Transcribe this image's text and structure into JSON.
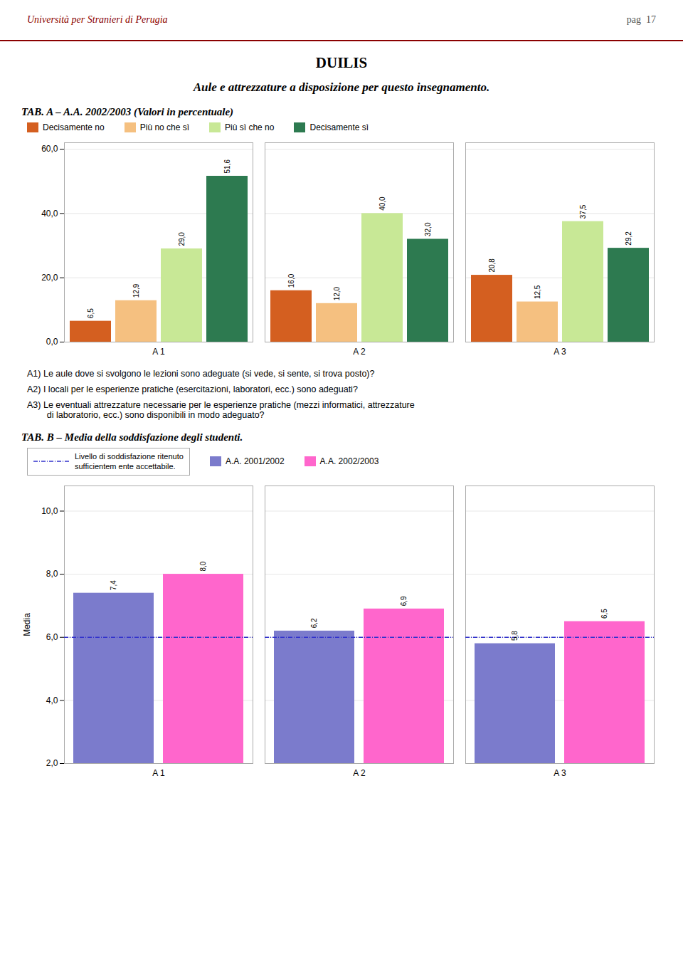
{
  "title": "DUILIS",
  "subtitle": "Aule e attrezzature a disposizione per questo insegnamento.",
  "annotations": [
    "Università per Stranieri di Perugia",
    "pag  17"
  ],
  "chart_data": [
    {
      "type": "bar",
      "title": "TAB. A – A.A. 2002/2003 (Valori in percentuale)",
      "categories": [
        "A 1",
        "A 2",
        "A 3"
      ],
      "series": [
        {
          "name": "Decisamente no",
          "color": "#d45f20",
          "values": [
            6.5,
            16.0,
            20.8
          ],
          "value_labels": [
            "6,5",
            "16,0",
            "20,8"
          ]
        },
        {
          "name": "Più no che sì",
          "color": "#f5c080",
          "values": [
            12.9,
            12.0,
            12.5
          ],
          "value_labels": [
            "12,9",
            "12,0",
            "12,5"
          ]
        },
        {
          "name": "Più sì che no",
          "color": "#c8e896",
          "values": [
            29.0,
            40.0,
            37.5
          ],
          "value_labels": [
            "29,0",
            "40,0",
            "37,5"
          ]
        },
        {
          "name": "Decisamente sì",
          "color": "#2d7a50",
          "values": [
            51.6,
            32.0,
            29.2
          ],
          "value_labels": [
            "51,6",
            "32,0",
            "29,2"
          ]
        }
      ],
      "ylim": [
        0,
        62
      ],
      "yticks": [
        {
          "value": 0,
          "label": "0,0"
        },
        {
          "value": 20,
          "label": "20,0"
        },
        {
          "value": 40,
          "label": "40,0"
        },
        {
          "value": 60,
          "label": "60,0"
        }
      ],
      "grid": true,
      "legend": "top",
      "data_labels": true,
      "annotations": [
        "A1) Le aule dove si svolgono le lezioni sono adeguate (si vede, si sente, si trova posto)?",
        "A2) I locali per le esperienze pratiche (esercitazioni, laboratori, ecc.) sono adeguati?",
        "A3) Le eventuali attrezzature necessarie per le esperienze pratiche (mezzi informatici, attrezzature\n        di laboratorio, ecc.) sono disponibili in modo adeguato?"
      ]
    },
    {
      "type": "bar",
      "title": "TAB. B – Media della soddisfazione degli studenti.",
      "categories": [
        "A 1",
        "A 2",
        "A 3"
      ],
      "series": [
        {
          "name": "A.A. 2001/2002",
          "color": "#7b7bcc",
          "values": [
            7.4,
            6.2,
            5.8
          ],
          "value_labels": [
            "7,4",
            "6,2",
            "5,8"
          ]
        },
        {
          "name": "A.A. 2002/2003",
          "color": "#ff66cc",
          "values": [
            8.0,
            6.9,
            6.5
          ],
          "value_labels": [
            "8,0",
            "6,9",
            "6,5"
          ]
        }
      ],
      "ylabel": "Media",
      "ylim": [
        2,
        10.8
      ],
      "yticks": [
        {
          "value": 2,
          "label": "2,0"
        },
        {
          "value": 4,
          "label": "4,0"
        },
        {
          "value": 6,
          "label": "6,0"
        },
        {
          "value": 8,
          "label": "8,0"
        },
        {
          "value": 10,
          "label": "10,0"
        }
      ],
      "grid": true,
      "legend": "top",
      "data_labels": true,
      "reference_line": {
        "value": 6.0,
        "label": "Livello di soddisfazione ritenuto\nsufficientem ente accettabile.",
        "color": "#3333cc",
        "line_style": "dashdot"
      }
    }
  ]
}
